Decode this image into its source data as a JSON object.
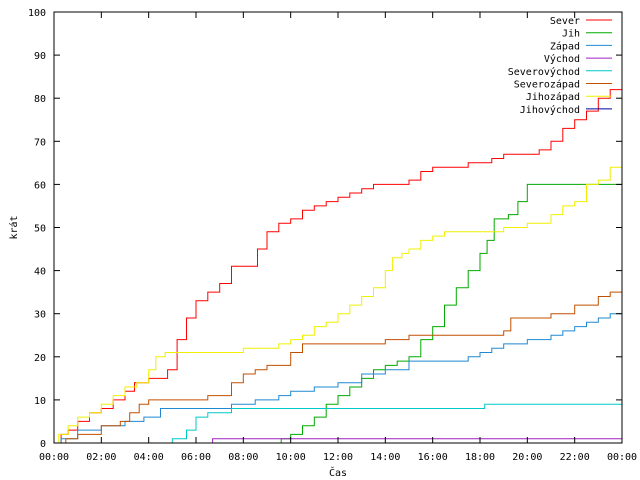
{
  "chart_data": {
    "type": "line",
    "xlabel": "Čas",
    "ylabel": "krát",
    "ylim": [
      0,
      100
    ],
    "xlim": [
      0,
      24
    ],
    "yticks": [
      0,
      10,
      20,
      30,
      40,
      50,
      60,
      70,
      80,
      90,
      100
    ],
    "xticks": [
      {
        "v": 0,
        "label": "00:00"
      },
      {
        "v": 2,
        "label": "02:00"
      },
      {
        "v": 4,
        "label": "04:00"
      },
      {
        "v": 6,
        "label": "06:00"
      },
      {
        "v": 8,
        "label": "08:00"
      },
      {
        "v": 10,
        "label": "10:00"
      },
      {
        "v": 12,
        "label": "12:00"
      },
      {
        "v": 14,
        "label": "14:00"
      },
      {
        "v": 16,
        "label": "16:00"
      },
      {
        "v": 18,
        "label": "18:00"
      },
      {
        "v": 20,
        "label": "20:00"
      },
      {
        "v": 22,
        "label": "22:00"
      },
      {
        "v": 24,
        "label": "00:00"
      }
    ],
    "grid": false,
    "legend_position": "top-right",
    "series": [
      {
        "name": "Sever",
        "color": "#ff0000",
        "points": [
          [
            0,
            0
          ],
          [
            0.3,
            2
          ],
          [
            0.6,
            3
          ],
          [
            1,
            5
          ],
          [
            1.5,
            7
          ],
          [
            2,
            8
          ],
          [
            2.5,
            10
          ],
          [
            3,
            12
          ],
          [
            3.4,
            14
          ],
          [
            4,
            15
          ],
          [
            4.5,
            15
          ],
          [
            4.8,
            17
          ],
          [
            5.2,
            24
          ],
          [
            5.6,
            29
          ],
          [
            6,
            33
          ],
          [
            6.5,
            35
          ],
          [
            7,
            37
          ],
          [
            7.5,
            41
          ],
          [
            8.2,
            41
          ],
          [
            8.6,
            45
          ],
          [
            9,
            49
          ],
          [
            9.5,
            51
          ],
          [
            10,
            52
          ],
          [
            10.5,
            54
          ],
          [
            11,
            55
          ],
          [
            11.5,
            56
          ],
          [
            12,
            57
          ],
          [
            12.5,
            58
          ],
          [
            13,
            59
          ],
          [
            13.5,
            60
          ],
          [
            14.5,
            60
          ],
          [
            15,
            61
          ],
          [
            15.5,
            63
          ],
          [
            16,
            64
          ],
          [
            17,
            64
          ],
          [
            17.5,
            65
          ],
          [
            18.5,
            66
          ],
          [
            19,
            67
          ],
          [
            20,
            67
          ],
          [
            20.5,
            68
          ],
          [
            21,
            70
          ],
          [
            21.5,
            73
          ],
          [
            22,
            75
          ],
          [
            22.5,
            77
          ],
          [
            23,
            80
          ],
          [
            23.5,
            82
          ],
          [
            24,
            82
          ]
        ]
      },
      {
        "name": "Jih",
        "color": "#00aa00",
        "points": [
          [
            0,
            0
          ],
          [
            9.3,
            0
          ],
          [
            9.6,
            1
          ],
          [
            10,
            2
          ],
          [
            10.5,
            4
          ],
          [
            11,
            6
          ],
          [
            11.5,
            9
          ],
          [
            12,
            11
          ],
          [
            12.5,
            13
          ],
          [
            13,
            15
          ],
          [
            13.5,
            17
          ],
          [
            14,
            18
          ],
          [
            14.5,
            19
          ],
          [
            15,
            20
          ],
          [
            15.5,
            24
          ],
          [
            16,
            27
          ],
          [
            16.5,
            32
          ],
          [
            17,
            36
          ],
          [
            17.5,
            40
          ],
          [
            18,
            44
          ],
          [
            18.3,
            47
          ],
          [
            18.6,
            52
          ],
          [
            19.2,
            53
          ],
          [
            19.6,
            56
          ],
          [
            20,
            60
          ],
          [
            21,
            60
          ],
          [
            24,
            60
          ]
        ]
      },
      {
        "name": "Západ",
        "color": "#1e88d2",
        "points": [
          [
            0,
            0
          ],
          [
            0.3,
            1
          ],
          [
            1,
            3
          ],
          [
            2,
            4
          ],
          [
            3,
            5
          ],
          [
            3.8,
            6
          ],
          [
            4.5,
            8
          ],
          [
            6,
            8
          ],
          [
            7,
            8
          ],
          [
            7.5,
            9
          ],
          [
            8,
            9
          ],
          [
            8.5,
            10
          ],
          [
            9,
            10
          ],
          [
            9.5,
            11
          ],
          [
            10,
            12
          ],
          [
            11,
            13
          ],
          [
            12,
            14
          ],
          [
            13,
            16
          ],
          [
            14,
            17
          ],
          [
            15,
            19
          ],
          [
            16,
            19
          ],
          [
            17,
            19
          ],
          [
            17.5,
            20
          ],
          [
            18,
            21
          ],
          [
            18.5,
            22
          ],
          [
            19,
            23
          ],
          [
            20,
            24
          ],
          [
            21,
            25
          ],
          [
            21.5,
            26
          ],
          [
            22,
            27
          ],
          [
            22.5,
            28
          ],
          [
            23,
            29
          ],
          [
            23.5,
            30
          ],
          [
            24,
            31
          ]
        ]
      },
      {
        "name": "Východ",
        "color": "#a020c0",
        "points": [
          [
            0,
            0
          ],
          [
            6.5,
            0
          ],
          [
            6.7,
            1
          ],
          [
            24,
            1
          ]
        ]
      },
      {
        "name": "Severovýchod",
        "color": "#00c8c8",
        "points": [
          [
            0,
            0
          ],
          [
            4.8,
            0
          ],
          [
            5,
            1
          ],
          [
            5.6,
            3
          ],
          [
            6,
            6
          ],
          [
            6.5,
            7
          ],
          [
            7,
            7
          ],
          [
            7.5,
            8
          ],
          [
            10,
            8
          ],
          [
            14,
            8
          ],
          [
            15,
            8
          ],
          [
            15.5,
            8
          ],
          [
            18,
            8
          ],
          [
            18.2,
            9
          ],
          [
            24,
            9
          ]
        ]
      },
      {
        "name": "Severozápad",
        "color": "#c05000",
        "points": [
          [
            0,
            0
          ],
          [
            0.5,
            1
          ],
          [
            1,
            2
          ],
          [
            2,
            4
          ],
          [
            2.8,
            5
          ],
          [
            3.2,
            7
          ],
          [
            3.6,
            9
          ],
          [
            4,
            10
          ],
          [
            5,
            10
          ],
          [
            6,
            10
          ],
          [
            6.5,
            11
          ],
          [
            7,
            11
          ],
          [
            7.5,
            14
          ],
          [
            8,
            16
          ],
          [
            8.5,
            17
          ],
          [
            9,
            18
          ],
          [
            10,
            21
          ],
          [
            10.5,
            23
          ],
          [
            12,
            23
          ],
          [
            13,
            23
          ],
          [
            14,
            24
          ],
          [
            15,
            25
          ],
          [
            16,
            25
          ],
          [
            17,
            25
          ],
          [
            18,
            25
          ],
          [
            18.5,
            25
          ],
          [
            19,
            26
          ],
          [
            19.3,
            29
          ],
          [
            20,
            29
          ],
          [
            21,
            30
          ],
          [
            22,
            32
          ],
          [
            23,
            34
          ],
          [
            23.5,
            35
          ],
          [
            24,
            36
          ]
        ]
      },
      {
        "name": "Jihozápad",
        "color": "#f0f000",
        "points": [
          [
            0,
            0
          ],
          [
            0.2,
            2
          ],
          [
            0.6,
            4
          ],
          [
            1,
            6
          ],
          [
            1.5,
            7
          ],
          [
            2,
            9
          ],
          [
            2.5,
            11
          ],
          [
            3,
            13
          ],
          [
            3.5,
            14
          ],
          [
            4,
            17
          ],
          [
            4.3,
            20
          ],
          [
            4.7,
            21
          ],
          [
            6,
            21
          ],
          [
            7,
            21
          ],
          [
            8,
            22
          ],
          [
            9,
            22
          ],
          [
            9.5,
            23
          ],
          [
            10,
            24
          ],
          [
            10.5,
            25
          ],
          [
            11,
            27
          ],
          [
            11.5,
            28
          ],
          [
            12,
            30
          ],
          [
            12.5,
            32
          ],
          [
            13,
            34
          ],
          [
            13.5,
            36
          ],
          [
            14,
            40
          ],
          [
            14.3,
            43
          ],
          [
            14.7,
            44
          ],
          [
            15,
            45
          ],
          [
            15.5,
            47
          ],
          [
            16,
            48
          ],
          [
            16.5,
            49
          ],
          [
            18,
            49
          ],
          [
            19,
            50
          ],
          [
            20,
            51
          ],
          [
            21,
            53
          ],
          [
            21.5,
            55
          ],
          [
            22,
            56
          ],
          [
            22.5,
            60
          ],
          [
            23,
            61
          ],
          [
            23.5,
            64
          ],
          [
            24,
            65
          ]
        ]
      },
      {
        "name": "Jihovýchod",
        "color": "#0000a0",
        "points": [
          [
            0,
            0
          ],
          [
            24,
            0
          ]
        ]
      }
    ]
  }
}
